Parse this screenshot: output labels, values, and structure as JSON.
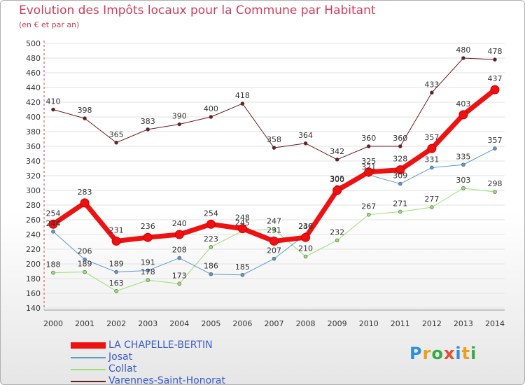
{
  "header": {
    "title": "Evolution des Impôts locaux pour la Commune par Habitant",
    "subtitle": "(en € et par an)"
  },
  "logo": {
    "letters": [
      {
        "ch": "P",
        "color": "#2f8fd8"
      },
      {
        "ch": "r",
        "color": "#e8a020"
      },
      {
        "ch": "o",
        "color": "#39a845"
      },
      {
        "ch": "x",
        "color": "#e84c2c"
      },
      {
        "ch": "i",
        "color": "#2f8fd8"
      },
      {
        "ch": "t",
        "color": "#e8a020"
      },
      {
        "ch": "i",
        "color": "#39a845"
      }
    ]
  },
  "chart_data": {
    "type": "line",
    "title": "Evolution des Impôts locaux pour la Commune par Habitant",
    "subtitle": "(en € et par an)",
    "xlabel": "",
    "ylabel": "",
    "x": [
      "2000",
      "2001",
      "2002",
      "2003",
      "2004",
      "2005",
      "2006",
      "2007",
      "2008",
      "2009",
      "2010",
      "2011",
      "2012",
      "2013",
      "2014"
    ],
    "ylim": [
      140,
      500
    ],
    "yticks": [
      140,
      160,
      180,
      200,
      220,
      240,
      260,
      280,
      300,
      320,
      340,
      360,
      380,
      400,
      420,
      440,
      460,
      480,
      500
    ],
    "grid": "horizontal",
    "legend_position": "bottom-left",
    "series": [
      {
        "name": "Varennes-Saint-Honorat",
        "color": "#6b1a22",
        "width": 1,
        "marker": 2.5,
        "labels": "above",
        "values": [
          410,
          398,
          365,
          383,
          390,
          400,
          418,
          358,
          364,
          342,
          360,
          360,
          433,
          480,
          478
        ]
      },
      {
        "name": "Collat",
        "color": "#99e070",
        "width": 1,
        "marker": 2.5,
        "labels": "above",
        "values": [
          188,
          189,
          163,
          178,
          173,
          223,
          245,
          247,
          210,
          232,
          267,
          271,
          277,
          303,
          298
        ]
      },
      {
        "name": "Josat",
        "color": "#5a9ad0",
        "width": 1,
        "marker": 2.5,
        "labels": "above",
        "values": [
          244,
          206,
          189,
          191,
          208,
          186,
          185,
          207,
          240,
          305,
          321,
          309,
          331,
          335,
          357
        ]
      },
      {
        "name": "LA CHAPELLE-BERTIN",
        "color": "#ee1111",
        "width": 7,
        "marker": 6,
        "labels": "above",
        "values": [
          254,
          283,
          231,
          236,
          240,
          254,
          248,
          231,
          236,
          300,
          325,
          328,
          357,
          403,
          437
        ]
      }
    ]
  }
}
